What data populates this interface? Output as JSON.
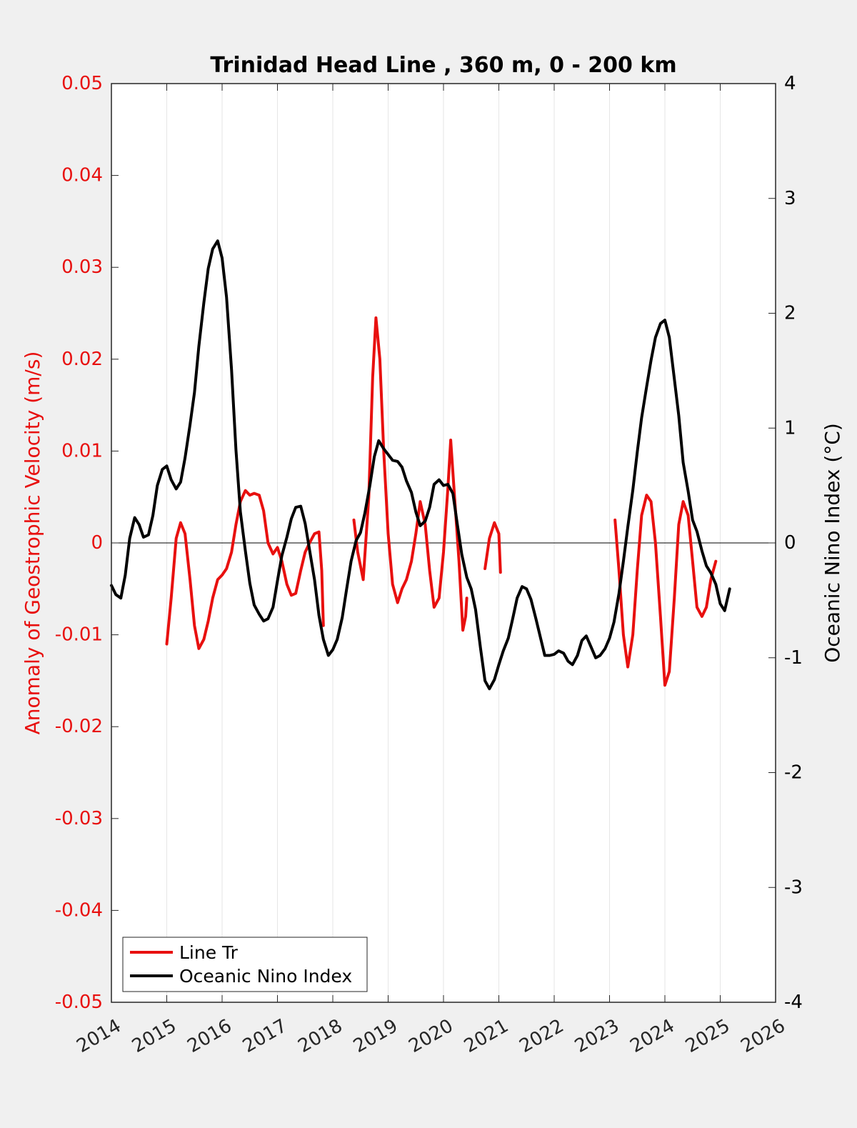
{
  "chart_data": {
    "type": "line",
    "title": "Trinidad Head Line , 360 m, 0 - 200 km",
    "ylabel_left": "Anomaly of Geostrophic Velocity (m/s)",
    "ylabel_right": "Oceanic Nino Index (°C)",
    "xlabel": "",
    "xlim": [
      2014,
      2026
    ],
    "ylim_left": [
      -0.05,
      0.05
    ],
    "ylim_right": [
      -4,
      4
    ],
    "x_ticks": [
      "2014",
      "2015",
      "2016",
      "2017",
      "2018",
      "2019",
      "2020",
      "2021",
      "2022",
      "2023",
      "2024",
      "2025",
      "2026"
    ],
    "y_ticks_left": [
      "-0.05",
      "-0.04",
      "-0.03",
      "-0.02",
      "-0.01",
      "0",
      "0.01",
      "0.02",
      "0.03",
      "0.04",
      "0.05"
    ],
    "y_ticks_right": [
      "-4",
      "-3",
      "-2",
      "-1",
      "0",
      "1",
      "2",
      "3",
      "4"
    ],
    "grid": "vertical",
    "zero_line": true,
    "legend_position": "bottom-left",
    "colors": {
      "line_tr": "#e8100f",
      "oni": "#000000",
      "left_axis": "#e8100f",
      "right_axis": "#000000"
    },
    "series": [
      {
        "name": "Line Tr",
        "axis": "left",
        "color": "#e8100f",
        "segments": [
          [
            [
              2015.0,
              -0.011
            ],
            [
              2015.08,
              -0.006
            ],
            [
              2015.17,
              0.0005
            ],
            [
              2015.25,
              0.0022
            ],
            [
              2015.33,
              0.001
            ],
            [
              2015.42,
              -0.004
            ],
            [
              2015.5,
              -0.009
            ],
            [
              2015.58,
              -0.0115
            ],
            [
              2015.67,
              -0.0105
            ],
            [
              2015.75,
              -0.0085
            ],
            [
              2015.83,
              -0.006
            ],
            [
              2015.92,
              -0.004
            ],
            [
              2016.0,
              -0.0035
            ],
            [
              2016.08,
              -0.0028
            ],
            [
              2016.17,
              -0.001
            ],
            [
              2016.25,
              0.002
            ],
            [
              2016.33,
              0.0045
            ],
            [
              2016.42,
              0.0057
            ],
            [
              2016.5,
              0.0052
            ],
            [
              2016.58,
              0.0054
            ],
            [
              2016.67,
              0.0052
            ],
            [
              2016.75,
              0.0035
            ],
            [
              2016.83,
              0.0
            ],
            [
              2016.92,
              -0.0012
            ],
            [
              2017.0,
              -0.0005
            ],
            [
              2017.08,
              -0.002
            ],
            [
              2017.17,
              -0.0045
            ],
            [
              2017.25,
              -0.0057
            ],
            [
              2017.33,
              -0.0055
            ],
            [
              2017.42,
              -0.003
            ],
            [
              2017.5,
              -0.001
            ],
            [
              2017.58,
              0.0
            ],
            [
              2017.67,
              0.001
            ],
            [
              2017.75,
              0.0012
            ],
            [
              2017.8,
              -0.003
            ],
            [
              2017.83,
              -0.009
            ]
          ],
          [
            [
              2018.38,
              0.0025
            ],
            [
              2018.45,
              -0.001
            ],
            [
              2018.55,
              -0.004
            ],
            [
              2018.65,
              0.005
            ],
            [
              2018.72,
              0.018
            ],
            [
              2018.78,
              0.0245
            ],
            [
              2018.85,
              0.02
            ],
            [
              2018.92,
              0.01
            ],
            [
              2019.0,
              0.001
            ],
            [
              2019.08,
              -0.0045
            ],
            [
              2019.17,
              -0.0065
            ],
            [
              2019.25,
              -0.005
            ],
            [
              2019.33,
              -0.004
            ],
            [
              2019.42,
              -0.002
            ],
            [
              2019.5,
              0.001
            ],
            [
              2019.58,
              0.0045
            ],
            [
              2019.67,
              0.002
            ],
            [
              2019.75,
              -0.003
            ],
            [
              2019.83,
              -0.007
            ],
            [
              2019.92,
              -0.006
            ],
            [
              2020.0,
              -0.001
            ],
            [
              2020.08,
              0.006
            ],
            [
              2020.13,
              0.0112
            ],
            [
              2020.2,
              0.005
            ],
            [
              2020.28,
              -0.002
            ],
            [
              2020.35,
              -0.0095
            ],
            [
              2020.4,
              -0.008
            ],
            [
              2020.42,
              -0.006
            ]
          ],
          [
            [
              2020.75,
              -0.0028
            ],
            [
              2020.83,
              0.0005
            ],
            [
              2020.92,
              0.0022
            ],
            [
              2021.0,
              0.001
            ],
            [
              2021.03,
              -0.0032
            ]
          ],
          [
            [
              2023.1,
              0.0025
            ],
            [
              2023.17,
              -0.003
            ],
            [
              2023.25,
              -0.01
            ],
            [
              2023.33,
              -0.0135
            ],
            [
              2023.42,
              -0.01
            ],
            [
              2023.5,
              -0.003
            ],
            [
              2023.58,
              0.003
            ],
            [
              2023.67,
              0.0052
            ],
            [
              2023.75,
              0.0045
            ],
            [
              2023.83,
              0.0
            ],
            [
              2023.92,
              -0.008
            ],
            [
              2024.0,
              -0.0155
            ],
            [
              2024.08,
              -0.014
            ],
            [
              2024.17,
              -0.006
            ],
            [
              2024.25,
              0.002
            ],
            [
              2024.33,
              0.0045
            ],
            [
              2024.42,
              0.003
            ],
            [
              2024.5,
              -0.002
            ],
            [
              2024.58,
              -0.007
            ],
            [
              2024.67,
              -0.008
            ],
            [
              2024.75,
              -0.007
            ],
            [
              2024.83,
              -0.004
            ],
            [
              2024.92,
              -0.002
            ]
          ]
        ]
      },
      {
        "name": "Oceanic Nino Index",
        "axis": "right",
        "color": "#000000",
        "segments": [
          [
            [
              2014.0,
              -0.37
            ],
            [
              2014.08,
              -0.45
            ],
            [
              2014.17,
              -0.48
            ],
            [
              2014.25,
              -0.28
            ],
            [
              2014.33,
              0.04
            ],
            [
              2014.42,
              0.22
            ],
            [
              2014.5,
              0.16
            ],
            [
              2014.58,
              0.05
            ],
            [
              2014.67,
              0.07
            ],
            [
              2014.75,
              0.24
            ],
            [
              2014.83,
              0.5
            ],
            [
              2014.92,
              0.64
            ],
            [
              2015.0,
              0.67
            ],
            [
              2015.08,
              0.55
            ],
            [
              2015.17,
              0.47
            ],
            [
              2015.25,
              0.53
            ],
            [
              2015.33,
              0.74
            ],
            [
              2015.42,
              1.03
            ],
            [
              2015.5,
              1.31
            ],
            [
              2015.58,
              1.71
            ],
            [
              2015.67,
              2.09
            ],
            [
              2015.75,
              2.39
            ],
            [
              2015.83,
              2.56
            ],
            [
              2015.92,
              2.63
            ],
            [
              2016.0,
              2.48
            ],
            [
              2016.08,
              2.14
            ],
            [
              2016.17,
              1.51
            ],
            [
              2016.25,
              0.81
            ],
            [
              2016.33,
              0.27
            ],
            [
              2016.42,
              -0.07
            ],
            [
              2016.5,
              -0.35
            ],
            [
              2016.58,
              -0.54
            ],
            [
              2016.67,
              -0.62
            ],
            [
              2016.75,
              -0.68
            ],
            [
              2016.83,
              -0.66
            ],
            [
              2016.92,
              -0.56
            ],
            [
              2017.0,
              -0.33
            ],
            [
              2017.08,
              -0.11
            ],
            [
              2017.17,
              0.05
            ],
            [
              2017.25,
              0.21
            ],
            [
              2017.33,
              0.31
            ],
            [
              2017.42,
              0.32
            ],
            [
              2017.5,
              0.17
            ],
            [
              2017.58,
              -0.06
            ],
            [
              2017.67,
              -0.32
            ],
            [
              2017.75,
              -0.63
            ],
            [
              2017.83,
              -0.84
            ],
            [
              2017.92,
              -0.98
            ],
            [
              2018.0,
              -0.93
            ],
            [
              2018.08,
              -0.84
            ],
            [
              2018.17,
              -0.65
            ],
            [
              2018.25,
              -0.4
            ],
            [
              2018.33,
              -0.16
            ],
            [
              2018.42,
              0.02
            ],
            [
              2018.5,
              0.09
            ],
            [
              2018.58,
              0.26
            ],
            [
              2018.67,
              0.5
            ],
            [
              2018.75,
              0.75
            ],
            [
              2018.83,
              0.89
            ],
            [
              2018.92,
              0.82
            ],
            [
              2019.0,
              0.77
            ],
            [
              2019.08,
              0.72
            ],
            [
              2019.17,
              0.71
            ],
            [
              2019.25,
              0.66
            ],
            [
              2019.33,
              0.54
            ],
            [
              2019.42,
              0.44
            ],
            [
              2019.5,
              0.27
            ],
            [
              2019.58,
              0.15
            ],
            [
              2019.67,
              0.19
            ],
            [
              2019.75,
              0.31
            ],
            [
              2019.83,
              0.51
            ],
            [
              2019.92,
              0.55
            ],
            [
              2020.0,
              0.5
            ],
            [
              2020.08,
              0.51
            ],
            [
              2020.17,
              0.43
            ],
            [
              2020.25,
              0.16
            ],
            [
              2020.33,
              -0.1
            ],
            [
              2020.42,
              -0.3
            ],
            [
              2020.5,
              -0.4
            ],
            [
              2020.58,
              -0.58
            ],
            [
              2020.67,
              -0.92
            ],
            [
              2020.75,
              -1.2
            ],
            [
              2020.83,
              -1.27
            ],
            [
              2020.92,
              -1.19
            ],
            [
              2021.0,
              -1.06
            ],
            [
              2021.08,
              -0.94
            ],
            [
              2021.17,
              -0.83
            ],
            [
              2021.25,
              -0.66
            ],
            [
              2021.33,
              -0.48
            ],
            [
              2021.42,
              -0.38
            ],
            [
              2021.5,
              -0.4
            ],
            [
              2021.58,
              -0.49
            ],
            [
              2021.67,
              -0.66
            ],
            [
              2021.75,
              -0.82
            ],
            [
              2021.83,
              -0.98
            ],
            [
              2021.92,
              -0.98
            ],
            [
              2022.0,
              -0.97
            ],
            [
              2022.08,
              -0.94
            ],
            [
              2022.17,
              -0.96
            ],
            [
              2022.25,
              -1.03
            ],
            [
              2022.33,
              -1.06
            ],
            [
              2022.42,
              -0.98
            ],
            [
              2022.5,
              -0.85
            ],
            [
              2022.58,
              -0.81
            ],
            [
              2022.67,
              -0.91
            ],
            [
              2022.75,
              -1.0
            ],
            [
              2022.83,
              -0.98
            ],
            [
              2022.92,
              -0.92
            ],
            [
              2023.0,
              -0.83
            ],
            [
              2023.08,
              -0.69
            ],
            [
              2023.17,
              -0.44
            ],
            [
              2023.25,
              -0.16
            ],
            [
              2023.33,
              0.14
            ],
            [
              2023.42,
              0.46
            ],
            [
              2023.5,
              0.79
            ],
            [
              2023.58,
              1.09
            ],
            [
              2023.67,
              1.36
            ],
            [
              2023.75,
              1.59
            ],
            [
              2023.83,
              1.79
            ],
            [
              2023.92,
              1.91
            ],
            [
              2024.0,
              1.94
            ],
            [
              2024.08,
              1.79
            ],
            [
              2024.17,
              1.43
            ],
            [
              2024.25,
              1.11
            ],
            [
              2024.33,
              0.7
            ],
            [
              2024.42,
              0.45
            ],
            [
              2024.5,
              0.2
            ],
            [
              2024.58,
              0.1
            ],
            [
              2024.67,
              -0.07
            ],
            [
              2024.75,
              -0.2
            ],
            [
              2024.83,
              -0.26
            ],
            [
              2024.92,
              -0.36
            ],
            [
              2025.0,
              -0.53
            ],
            [
              2025.08,
              -0.59
            ],
            [
              2025.17,
              -0.4
            ]
          ]
        ]
      }
    ]
  }
}
